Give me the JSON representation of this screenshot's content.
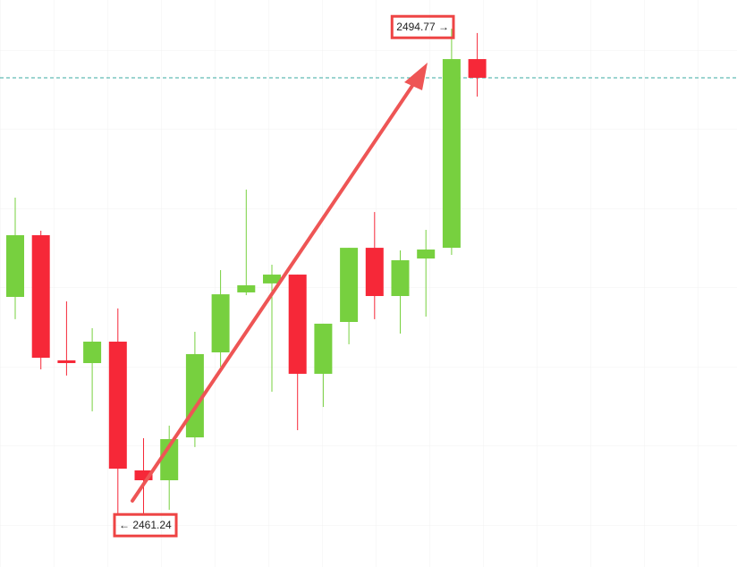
{
  "chart_data": {
    "type": "candlestick",
    "ylim": [
      2457.6,
      2496.75
    ],
    "up_color": "#77d03f",
    "down_color": "#f62838",
    "open": [
      2476.25,
      2480.51,
      2471.87,
      2471.68,
      2473.16,
      2464.27,
      2463.59,
      2466.55,
      2472.42,
      2476.56,
      2477.18,
      2477.79,
      2470.94,
      2474.52,
      2479.64,
      2476.31,
      2478.9,
      2479.64,
      2492.67
    ],
    "high": [
      2483.1,
      2480.82,
      2475.94,
      2474.09,
      2475.45,
      2466.49,
      2467.36,
      2473.84,
      2478.1,
      2483.66,
      2478.47,
      2477.79,
      2474.4,
      2479.64,
      2482.11,
      2479.46,
      2480.88,
      2494.77,
      2494.47
    ],
    "low": [
      2474.71,
      2471.25,
      2470.82,
      2468.35,
      2461.24,
      2461.24,
      2461.55,
      2465.88,
      2471.43,
      2476.37,
      2469.7,
      2467.05,
      2468.65,
      2472.98,
      2474.71,
      2473.72,
      2474.89,
      2479.15,
      2490.08
    ],
    "close": [
      2480.51,
      2472.05,
      2471.68,
      2473.16,
      2464.39,
      2463.59,
      2466.43,
      2472.3,
      2476.43,
      2477.05,
      2477.79,
      2470.94,
      2474.4,
      2479.64,
      2476.31,
      2478.78,
      2479.52,
      2492.67,
      2491.38
    ],
    "annotations": [
      {
        "value": 2494.77,
        "label": "2494.77 →"
      },
      {
        "value": 2461.24,
        "label": "← 2461.24"
      }
    ]
  }
}
